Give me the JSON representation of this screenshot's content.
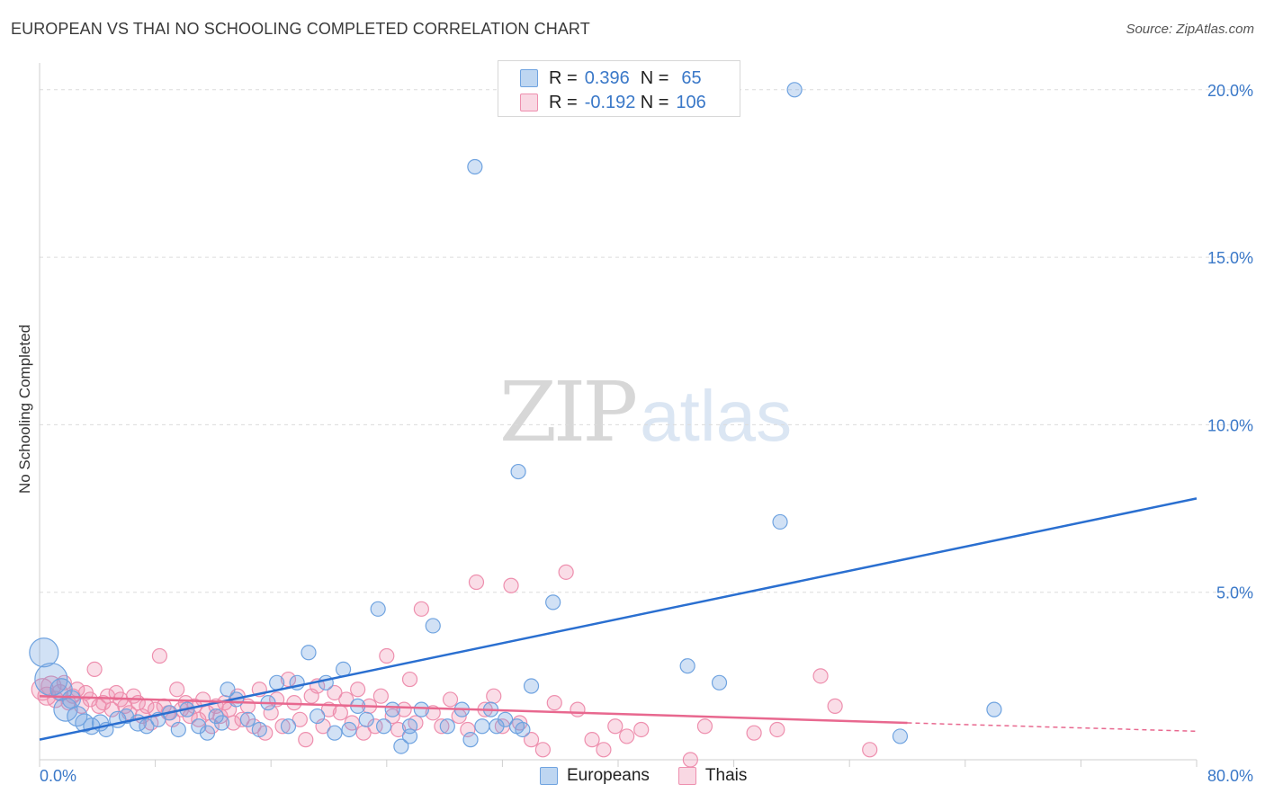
{
  "title": "EUROPEAN VS THAI NO SCHOOLING COMPLETED CORRELATION CHART",
  "source": "Source: ZipAtlas.com",
  "watermark": {
    "zip": "ZIP",
    "atlas": "atlas"
  },
  "legend": {
    "rows": [
      {
        "r_label": "R =",
        "r_value": "0.396",
        "n_label": "N =",
        "n_value": "65",
        "color": "#a9c8ef"
      },
      {
        "r_label": "R =",
        "r_value": "-0.192",
        "n_label": "N =",
        "n_value": "106",
        "color": "#f5b6c8"
      }
    ]
  },
  "bottom_legend": {
    "europeans": "Europeans",
    "thais": "Thais"
  },
  "chart_data": {
    "type": "scatter",
    "ylabel": "No Schooling Completed",
    "xlim": [
      0,
      80
    ],
    "ylim": [
      0,
      20.8
    ],
    "x_tick_labels": [
      "0.0%",
      "80.0%"
    ],
    "y_ticks": [
      5,
      10,
      15,
      20
    ],
    "y_tick_labels": [
      "5.0%",
      "10.0%",
      "15.0%",
      "20.0%"
    ],
    "colors": {
      "europeans": "#6fa3e0",
      "thais": "#ee8fae",
      "eu_line": "#2a6fd0",
      "th_line": "#e8688f"
    },
    "series": [
      {
        "name": "Europeans",
        "r": 0.396,
        "n": 65,
        "trend": {
          "x0": 0,
          "y0": 0.6,
          "x1": 80,
          "y1": 7.8
        },
        "points": [
          [
            0.3,
            3.2,
            16
          ],
          [
            0.8,
            2.4,
            18
          ],
          [
            1.5,
            2.1,
            12
          ],
          [
            1.8,
            1.5,
            13
          ],
          [
            2.2,
            1.8,
            10
          ],
          [
            2.6,
            1.3,
            11
          ],
          [
            3.1,
            1.1,
            10
          ],
          [
            3.6,
            1.0,
            9
          ],
          [
            4.2,
            1.1,
            9
          ],
          [
            4.6,
            0.9,
            8
          ],
          [
            5.4,
            1.2,
            9
          ],
          [
            6.0,
            1.3,
            8
          ],
          [
            6.8,
            1.1,
            9
          ],
          [
            7.4,
            1.0,
            8
          ],
          [
            8.2,
            1.2,
            8
          ],
          [
            9.0,
            1.4,
            8
          ],
          [
            9.6,
            0.9,
            8
          ],
          [
            10.2,
            1.5,
            8
          ],
          [
            11.0,
            1.0,
            8
          ],
          [
            11.6,
            0.8,
            8
          ],
          [
            12.2,
            1.3,
            8
          ],
          [
            13.0,
            2.1,
            8
          ],
          [
            13.6,
            1.8,
            8
          ],
          [
            14.4,
            1.2,
            8
          ],
          [
            15.2,
            0.9,
            8
          ],
          [
            15.8,
            1.7,
            8
          ],
          [
            16.4,
            2.3,
            8
          ],
          [
            17.2,
            1.0,
            8
          ],
          [
            17.8,
            2.3,
            8
          ],
          [
            18.6,
            3.2,
            8
          ],
          [
            19.2,
            1.3,
            8
          ],
          [
            19.8,
            2.3,
            8
          ],
          [
            20.4,
            0.8,
            8
          ],
          [
            21.0,
            2.7,
            8
          ],
          [
            21.4,
            0.9,
            8
          ],
          [
            22.0,
            1.6,
            8
          ],
          [
            22.6,
            1.2,
            8
          ],
          [
            23.4,
            4.5,
            8
          ],
          [
            23.8,
            1.0,
            8
          ],
          [
            24.4,
            1.5,
            8
          ],
          [
            25.0,
            0.4,
            8
          ],
          [
            25.6,
            0.7,
            8
          ],
          [
            26.4,
            1.5,
            8
          ],
          [
            27.2,
            4.0,
            8
          ],
          [
            28.2,
            1.0,
            8
          ],
          [
            29.2,
            1.5,
            8
          ],
          [
            29.8,
            0.6,
            8
          ],
          [
            30.6,
            1.0,
            8
          ],
          [
            31.2,
            1.5,
            8
          ],
          [
            31.6,
            1.0,
            8
          ],
          [
            32.2,
            1.2,
            8
          ],
          [
            33.0,
            1.0,
            8
          ],
          [
            34.0,
            2.2,
            8
          ],
          [
            33.4,
            0.9,
            8
          ],
          [
            30.1,
            17.7,
            8
          ],
          [
            33.1,
            8.6,
            8
          ],
          [
            35.5,
            4.7,
            8
          ],
          [
            44.8,
            2.8,
            8
          ],
          [
            47.0,
            2.3,
            8
          ],
          [
            51.2,
            7.1,
            8
          ],
          [
            52.2,
            20.0,
            8
          ],
          [
            59.5,
            0.7,
            8
          ],
          [
            66.0,
            1.5,
            8
          ],
          [
            25.6,
            1.0,
            8
          ],
          [
            12.6,
            1.1,
            8
          ]
        ]
      },
      {
        "name": "Thais",
        "r": -0.192,
        "n": 106,
        "trend": {
          "x0": 0,
          "y0": 1.9,
          "x1": 60,
          "y1": 1.1,
          "dash_x1": 80,
          "dash_y1": 0.85
        },
        "points": [
          [
            0.2,
            2.1,
            12
          ],
          [
            0.5,
            1.9,
            10
          ],
          [
            0.8,
            2.2,
            11
          ],
          [
            1.1,
            1.8,
            9
          ],
          [
            1.4,
            2.0,
            9
          ],
          [
            1.7,
            2.3,
            8
          ],
          [
            2.0,
            1.7,
            8
          ],
          [
            2.3,
            1.9,
            8
          ],
          [
            2.6,
            2.1,
            8
          ],
          [
            2.9,
            1.6,
            8
          ],
          [
            3.2,
            2.0,
            8
          ],
          [
            3.5,
            1.8,
            8
          ],
          [
            3.8,
            2.7,
            8
          ],
          [
            4.1,
            1.6,
            8
          ],
          [
            4.4,
            1.7,
            8
          ],
          [
            4.7,
            1.9,
            8
          ],
          [
            5.0,
            1.5,
            8
          ],
          [
            5.3,
            2.0,
            8
          ],
          [
            5.6,
            1.8,
            8
          ],
          [
            5.9,
            1.6,
            8
          ],
          [
            6.2,
            1.4,
            8
          ],
          [
            6.5,
            1.9,
            8
          ],
          [
            6.8,
            1.7,
            8
          ],
          [
            7.1,
            1.3,
            8
          ],
          [
            7.4,
            1.6,
            8
          ],
          [
            7.7,
            1.1,
            8
          ],
          [
            8.0,
            1.5,
            8
          ],
          [
            8.3,
            3.1,
            8
          ],
          [
            8.6,
            1.6,
            8
          ],
          [
            8.9,
            1.4,
            8
          ],
          [
            9.2,
            1.2,
            8
          ],
          [
            9.5,
            2.1,
            8
          ],
          [
            9.8,
            1.5,
            8
          ],
          [
            10.1,
            1.7,
            8
          ],
          [
            10.4,
            1.3,
            8
          ],
          [
            10.7,
            1.6,
            8
          ],
          [
            11.0,
            1.2,
            8
          ],
          [
            11.3,
            1.8,
            8
          ],
          [
            11.6,
            1.4,
            8
          ],
          [
            11.9,
            1.0,
            8
          ],
          [
            12.2,
            1.6,
            8
          ],
          [
            12.5,
            1.3,
            8
          ],
          [
            12.8,
            1.7,
            8
          ],
          [
            13.1,
            1.5,
            8
          ],
          [
            13.4,
            1.1,
            8
          ],
          [
            13.7,
            1.9,
            8
          ],
          [
            14.0,
            1.2,
            8
          ],
          [
            14.4,
            1.6,
            8
          ],
          [
            14.8,
            1.0,
            8
          ],
          [
            15.2,
            2.1,
            8
          ],
          [
            15.6,
            0.8,
            8
          ],
          [
            16.0,
            1.4,
            8
          ],
          [
            16.4,
            1.8,
            8
          ],
          [
            16.8,
            1.0,
            8
          ],
          [
            17.2,
            2.4,
            8
          ],
          [
            17.6,
            1.7,
            8
          ],
          [
            18.0,
            1.2,
            8
          ],
          [
            18.4,
            0.6,
            8
          ],
          [
            18.8,
            1.9,
            8
          ],
          [
            19.2,
            2.2,
            8
          ],
          [
            19.6,
            1.0,
            8
          ],
          [
            20.0,
            1.5,
            8
          ],
          [
            20.4,
            2.0,
            8
          ],
          [
            20.8,
            1.4,
            8
          ],
          [
            21.2,
            1.8,
            8
          ],
          [
            21.6,
            1.1,
            8
          ],
          [
            22.0,
            2.1,
            8
          ],
          [
            22.4,
            0.8,
            8
          ],
          [
            22.8,
            1.6,
            8
          ],
          [
            23.2,
            1.0,
            8
          ],
          [
            23.6,
            1.9,
            8
          ],
          [
            24.0,
            3.1,
            8
          ],
          [
            24.4,
            1.3,
            8
          ],
          [
            24.8,
            0.9,
            8
          ],
          [
            25.2,
            1.5,
            8
          ],
          [
            25.6,
            2.4,
            8
          ],
          [
            26.0,
            1.1,
            8
          ],
          [
            26.4,
            4.5,
            8
          ],
          [
            27.2,
            1.4,
            8
          ],
          [
            27.8,
            1.0,
            8
          ],
          [
            28.4,
            1.8,
            8
          ],
          [
            29.0,
            1.3,
            8
          ],
          [
            29.6,
            0.9,
            8
          ],
          [
            30.2,
            5.3,
            8
          ],
          [
            30.8,
            1.5,
            8
          ],
          [
            31.4,
            1.9,
            8
          ],
          [
            32.0,
            1.0,
            8
          ],
          [
            32.6,
            5.2,
            8
          ],
          [
            33.2,
            1.1,
            8
          ],
          [
            34.0,
            0.6,
            8
          ],
          [
            34.8,
            0.3,
            8
          ],
          [
            35.6,
            1.7,
            8
          ],
          [
            36.4,
            5.6,
            8
          ],
          [
            37.2,
            1.5,
            8
          ],
          [
            38.2,
            0.6,
            8
          ],
          [
            39.0,
            0.3,
            8
          ],
          [
            39.8,
            1.0,
            8
          ],
          [
            40.6,
            0.7,
            8
          ],
          [
            41.6,
            0.9,
            8
          ],
          [
            45.0,
            0.0,
            8
          ],
          [
            46.0,
            1.0,
            8
          ],
          [
            49.4,
            0.8,
            8
          ],
          [
            51.0,
            0.9,
            8
          ],
          [
            54.0,
            2.5,
            8
          ],
          [
            55.0,
            1.6,
            8
          ],
          [
            57.4,
            0.3,
            8
          ]
        ]
      }
    ]
  }
}
